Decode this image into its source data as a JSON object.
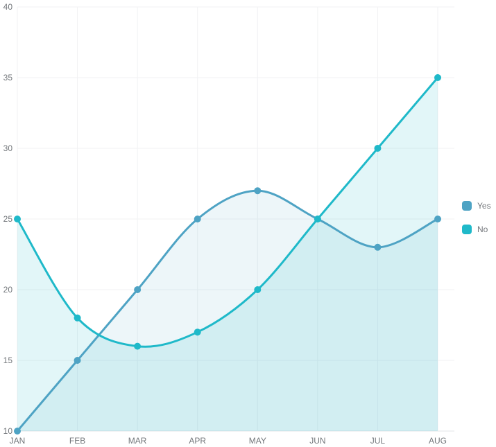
{
  "chart_data": {
    "type": "area",
    "title": "",
    "xlabel": "",
    "ylabel": "",
    "categories": [
      "JAN",
      "FEB",
      "MAR",
      "APR",
      "MAY",
      "JUN",
      "JUL",
      "AUG"
    ],
    "series": [
      {
        "name": "Yes",
        "color": "#4ea3c4",
        "fill_opacity": 0.1,
        "values": [
          10,
          15,
          20,
          25,
          27,
          25,
          23,
          25
        ]
      },
      {
        "name": "No",
        "color": "#1fb9c9",
        "fill_opacity": 0.13,
        "values": [
          25,
          18,
          16,
          17,
          20,
          25,
          30,
          35
        ]
      }
    ],
    "y_ticks": [
      10,
      15,
      20,
      25,
      30,
      35,
      40
    ],
    "ylim": [
      10,
      40
    ],
    "grid": true,
    "curve": "smooth",
    "legend_position": "right",
    "label_color": "#73777b",
    "grid_color": "#f1f2f3",
    "axis_border_color": "#e3e6e8",
    "background": "#ffffff"
  }
}
